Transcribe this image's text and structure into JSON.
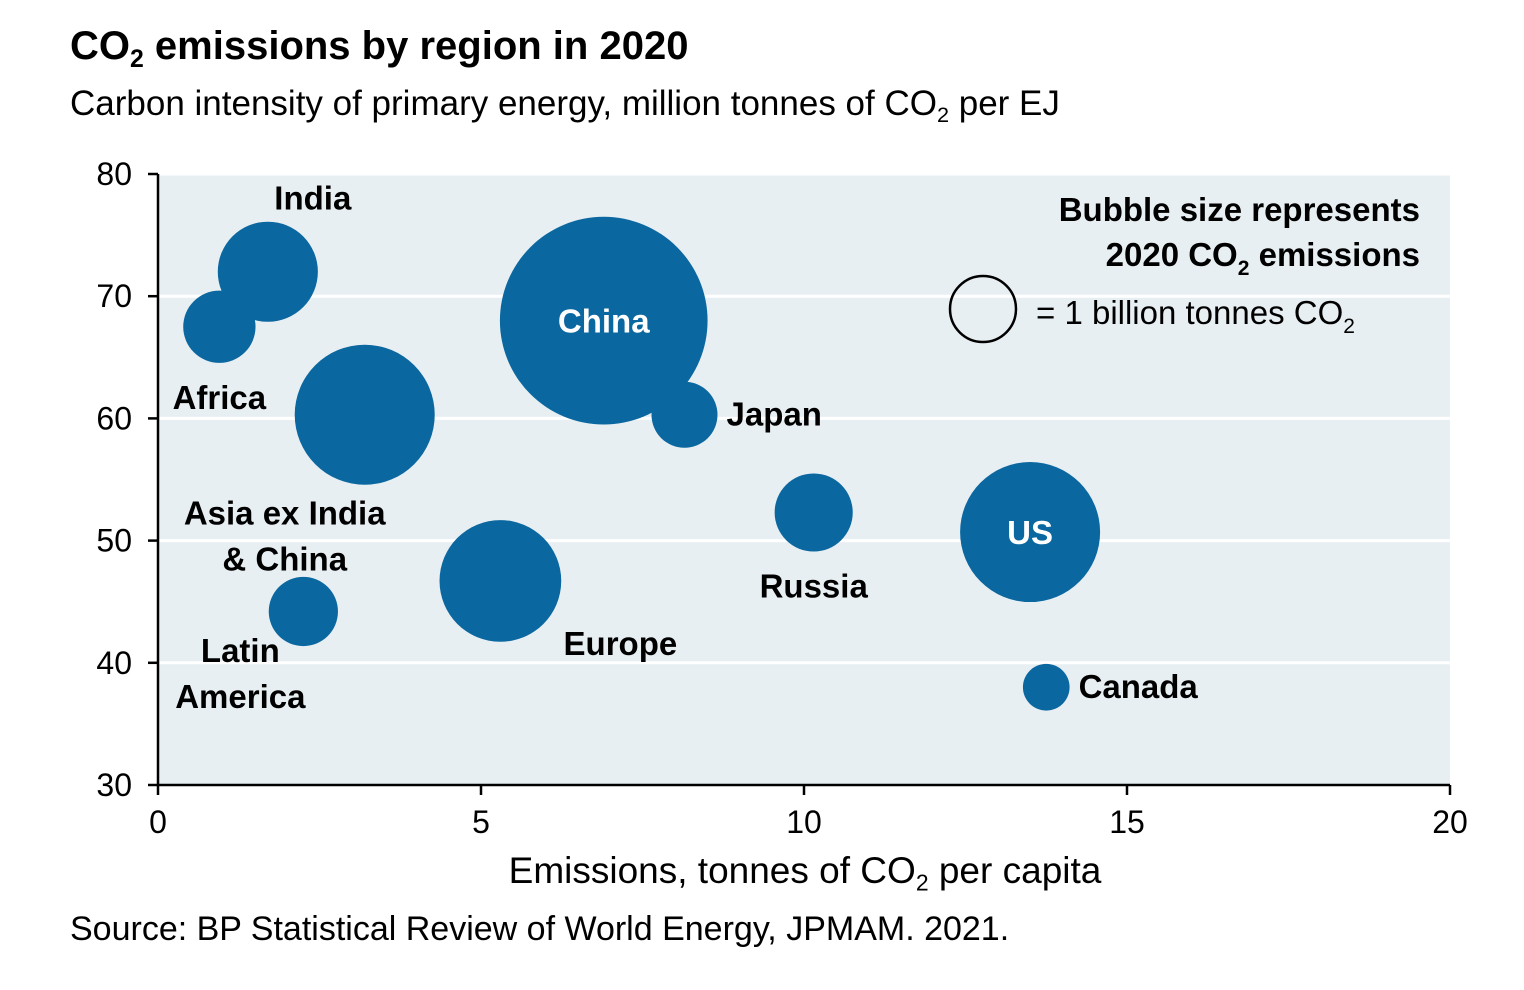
{
  "header": {
    "title_main": "CO",
    "title_sub": "2",
    "title_rest": " emissions by region in 2020",
    "subtitle_main": "Carbon intensity of primary energy, million tonnes of CO",
    "subtitle_sub": "2",
    "subtitle_rest": " per EJ"
  },
  "axis": {
    "xlabel_main": "Emissions, tonnes of CO",
    "xlabel_sub": "2",
    "xlabel_rest": " per capita"
  },
  "source": "Source: BP Statistical Review of World Energy, JPMAM. 2021.",
  "legend": {
    "line1": "Bubble size represents",
    "line2_main": "2020 CO",
    "line2_sub": "2",
    "line2_rest": " emissions",
    "item_main": "= 1 billion tonnes CO",
    "item_sub": "2"
  },
  "colors": {
    "bubble": "#0b67a0",
    "plot_bg": "#e8eff3",
    "grid": "#ffffff"
  },
  "chart_data": {
    "type": "scatter",
    "title": "CO2 emissions by region in 2020",
    "subtitle": "Carbon intensity of primary energy, million tonnes of CO2 per EJ",
    "xlabel": "Emissions, tonnes of CO2 per capita",
    "ylabel": "Carbon intensity of primary energy, million tonnes of CO2 per EJ",
    "xlim": [
      0,
      20
    ],
    "ylim": [
      30,
      80
    ],
    "xticks": [
      0,
      5,
      10,
      15,
      20
    ],
    "yticks": [
      30,
      40,
      50,
      60,
      70,
      80
    ],
    "grid": true,
    "size_legend": "Bubble size represents 2020 CO2 emissions; reference bubble = 1 billion tonnes CO2",
    "points": [
      {
        "name": "India",
        "label_lines": [
          "India"
        ],
        "x": 1.7,
        "y": 72.0,
        "emissions_bt": 2.3
      },
      {
        "name": "Africa",
        "label_lines": [
          "Africa"
        ],
        "x": 0.95,
        "y": 67.5,
        "emissions_bt": 1.2
      },
      {
        "name": "Asia ex India & China",
        "label_lines": [
          "Asia ex India",
          "& China"
        ],
        "x": 3.2,
        "y": 60.3,
        "emissions_bt": 4.5
      },
      {
        "name": "China",
        "label_lines": [
          "China"
        ],
        "x": 6.9,
        "y": 68.0,
        "emissions_bt": 9.9
      },
      {
        "name": "Japan",
        "label_lines": [
          "Japan"
        ],
        "x": 8.15,
        "y": 60.3,
        "emissions_bt": 1.0
      },
      {
        "name": "Latin America",
        "label_lines": [
          "Latin",
          "America"
        ],
        "x": 2.25,
        "y": 44.2,
        "emissions_bt": 1.1
      },
      {
        "name": "Europe",
        "label_lines": [
          "Europe"
        ],
        "x": 5.3,
        "y": 46.7,
        "emissions_bt": 3.4
      },
      {
        "name": "Russia",
        "label_lines": [
          "Russia"
        ],
        "x": 10.15,
        "y": 52.3,
        "emissions_bt": 1.4
      },
      {
        "name": "US",
        "label_lines": [
          "US"
        ],
        "x": 13.5,
        "y": 50.7,
        "emissions_bt": 4.5
      },
      {
        "name": "Canada",
        "label_lines": [
          "Canada"
        ],
        "x": 13.75,
        "y": 38.0,
        "emissions_bt": 0.5
      }
    ]
  }
}
